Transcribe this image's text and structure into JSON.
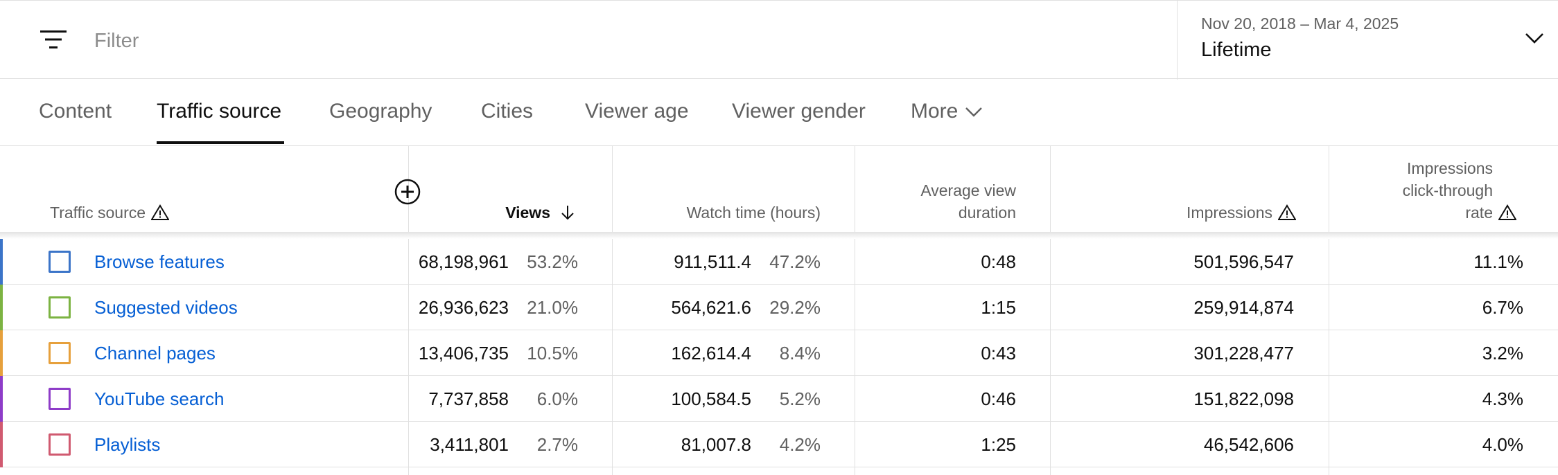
{
  "filter": {
    "placeholder": "Filter",
    "icon": "filter-lines-icon"
  },
  "date_picker": {
    "range": "Nov 20, 2018 – Mar 4, 2025",
    "label": "Lifetime"
  },
  "tabs": [
    {
      "label": "Content"
    },
    {
      "label": "Traffic source"
    },
    {
      "label": "Geography"
    },
    {
      "label": "Cities"
    },
    {
      "label": "Viewer age"
    },
    {
      "label": "Viewer gender"
    },
    {
      "label": "More"
    }
  ],
  "table": {
    "headers": {
      "source": "Traffic source",
      "views": "Views",
      "watch_time": "Watch time (hours)",
      "avd_line1": "Average view",
      "avd_line2": "duration",
      "impressions": "Impressions",
      "ctr_line1": "Impressions",
      "ctr_line2": "click-through",
      "ctr_line3": "rate"
    },
    "rows": [
      {
        "source": "Browse features",
        "color": "#3b74c8",
        "views": "68,198,961",
        "views_pct": "53.2%",
        "watch": "911,511.4",
        "watch_pct": "47.2%",
        "avd": "0:48",
        "impressions": "501,596,547",
        "ctr": "11.1%"
      },
      {
        "source": "Suggested videos",
        "color": "#7cb342",
        "views": "26,936,623",
        "views_pct": "21.0%",
        "watch": "564,621.6",
        "watch_pct": "29.2%",
        "avd": "1:15",
        "impressions": "259,914,874",
        "ctr": "6.7%"
      },
      {
        "source": "Channel pages",
        "color": "#e6a03c",
        "views": "13,406,735",
        "views_pct": "10.5%",
        "watch": "162,614.4",
        "watch_pct": "8.4%",
        "avd": "0:43",
        "impressions": "301,228,477",
        "ctr": "3.2%"
      },
      {
        "source": "YouTube search",
        "color": "#8e3cc8",
        "views": "7,737,858",
        "views_pct": "6.0%",
        "watch": "100,584.5",
        "watch_pct": "5.2%",
        "avd": "0:46",
        "impressions": "151,822,098",
        "ctr": "4.3%"
      },
      {
        "source": "Playlists",
        "color": "#d05a70",
        "views": "3,411,801",
        "views_pct": "2.7%",
        "watch": "81,007.8",
        "watch_pct": "4.2%",
        "avd": "1:25",
        "impressions": "46,542,606",
        "ctr": "4.0%"
      }
    ]
  }
}
